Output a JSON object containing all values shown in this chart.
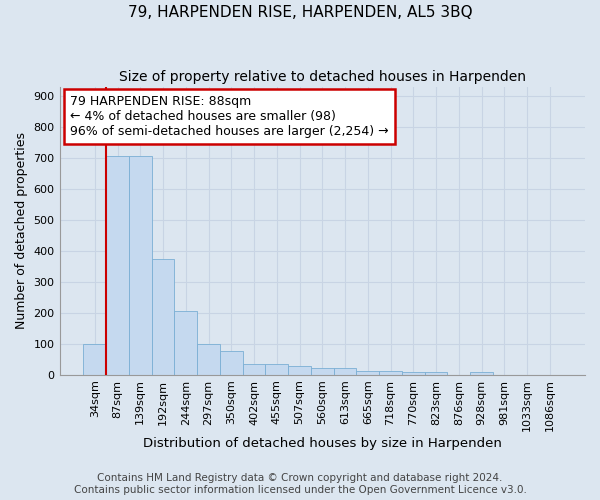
{
  "title1": "79, HARPENDEN RISE, HARPENDEN, AL5 3BQ",
  "title2": "Size of property relative to detached houses in Harpenden",
  "xlabel": "Distribution of detached houses by size in Harpenden",
  "ylabel": "Number of detached properties",
  "categories": [
    "34sqm",
    "87sqm",
    "139sqm",
    "192sqm",
    "244sqm",
    "297sqm",
    "350sqm",
    "402sqm",
    "455sqm",
    "507sqm",
    "560sqm",
    "613sqm",
    "665sqm",
    "718sqm",
    "770sqm",
    "823sqm",
    "876sqm",
    "928sqm",
    "981sqm",
    "1033sqm",
    "1086sqm"
  ],
  "values": [
    100,
    707,
    707,
    373,
    205,
    98,
    75,
    35,
    35,
    28,
    22,
    22,
    13,
    13,
    10,
    10,
    0,
    10,
    0,
    0,
    0
  ],
  "bar_color": "#c5d9ef",
  "bar_edge_color": "#7aafd4",
  "grid_color": "#c8d4e4",
  "background_color": "#dce6f0",
  "annotation_box_text": "79 HARPENDEN RISE: 88sqm\n← 4% of detached houses are smaller (98)\n96% of semi-detached houses are larger (2,254) →",
  "annotation_box_color": "#ffffff",
  "annotation_box_edge_color": "#cc0000",
  "vline_color": "#cc0000",
  "ylim": [
    0,
    930
  ],
  "yticks": [
    0,
    100,
    200,
    300,
    400,
    500,
    600,
    700,
    800,
    900
  ],
  "footer1": "Contains HM Land Registry data © Crown copyright and database right 2024.",
  "footer2": "Contains public sector information licensed under the Open Government Licence v3.0.",
  "title1_fontsize": 11,
  "title2_fontsize": 10,
  "xlabel_fontsize": 9.5,
  "ylabel_fontsize": 9,
  "tick_fontsize": 8,
  "footer_fontsize": 7.5,
  "annotation_fontsize": 9
}
